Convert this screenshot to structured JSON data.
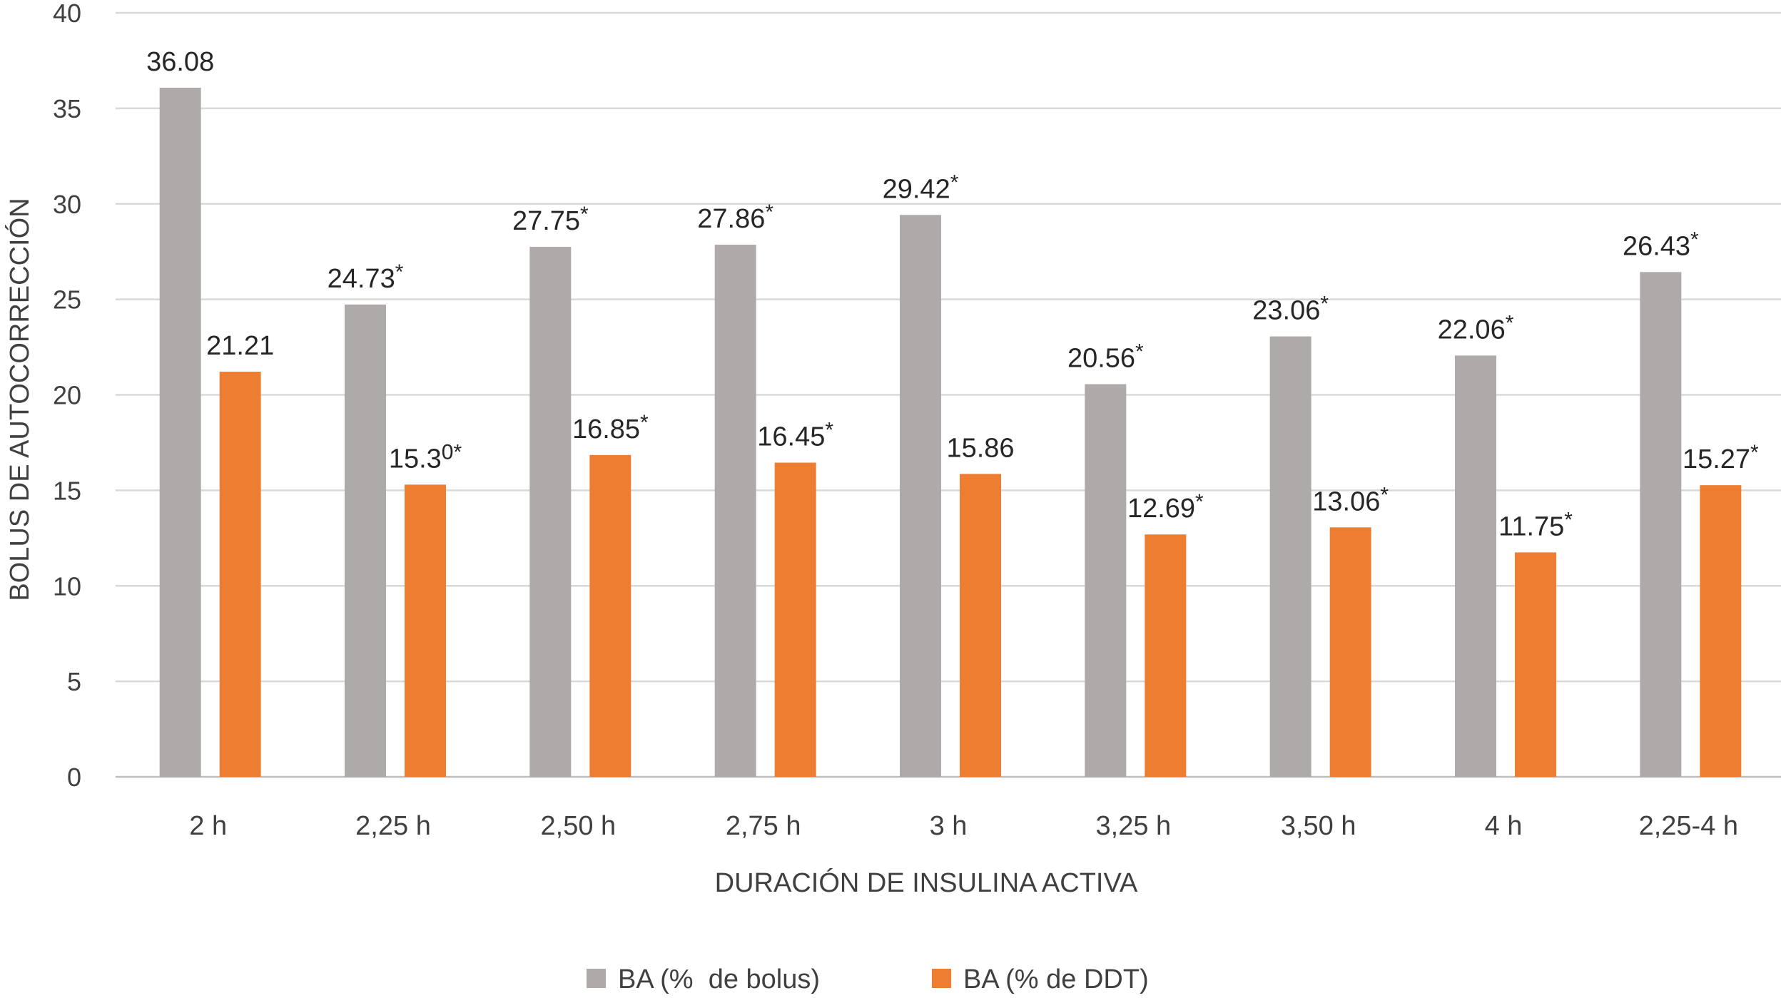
{
  "chart_data": {
    "type": "bar",
    "title": "",
    "xlabel": "DURACIÓN DE INSULINA ACTIVA",
    "ylabel": "BOLUS DE AUTOCORRECCIÓN",
    "ylim": [
      0,
      40
    ],
    "yticks": [
      0,
      5,
      10,
      15,
      20,
      25,
      30,
      35,
      40
    ],
    "grid": true,
    "legend_position": "bottom",
    "categories": [
      "2 h",
      "2,25 h",
      "2,50 h",
      "2,75 h",
      "3 h",
      "3,25 h",
      "3,50 h",
      "4 h",
      "2,25-4 h"
    ],
    "series": [
      {
        "name": "BA (%  de bolus)",
        "color": "#aeaaaa",
        "values": [
          36.08,
          24.73,
          27.75,
          27.86,
          29.42,
          20.56,
          23.06,
          22.06,
          26.43
        ],
        "labels": [
          "36.08",
          "24.73",
          "27.75",
          "27.86",
          "29.42",
          "20.56",
          "23.06",
          "22.06",
          "26.43"
        ],
        "label_marks": [
          "",
          "*",
          "*",
          "*",
          "*",
          "*",
          "*",
          "*",
          "*"
        ]
      },
      {
        "name": "BA (% de DDT)",
        "color": "#ed7d31",
        "values": [
          21.21,
          15.3,
          16.85,
          16.45,
          15.86,
          12.69,
          13.06,
          11.75,
          15.27
        ],
        "labels": [
          "21.21",
          "15.3",
          "16.85",
          "16.45",
          "15.86",
          "12.69",
          "13.06",
          "11.75",
          "15.27"
        ],
        "label_marks": [
          "",
          "0*",
          "*",
          "*",
          "",
          "*",
          "*",
          "*",
          "*"
        ]
      }
    ]
  }
}
